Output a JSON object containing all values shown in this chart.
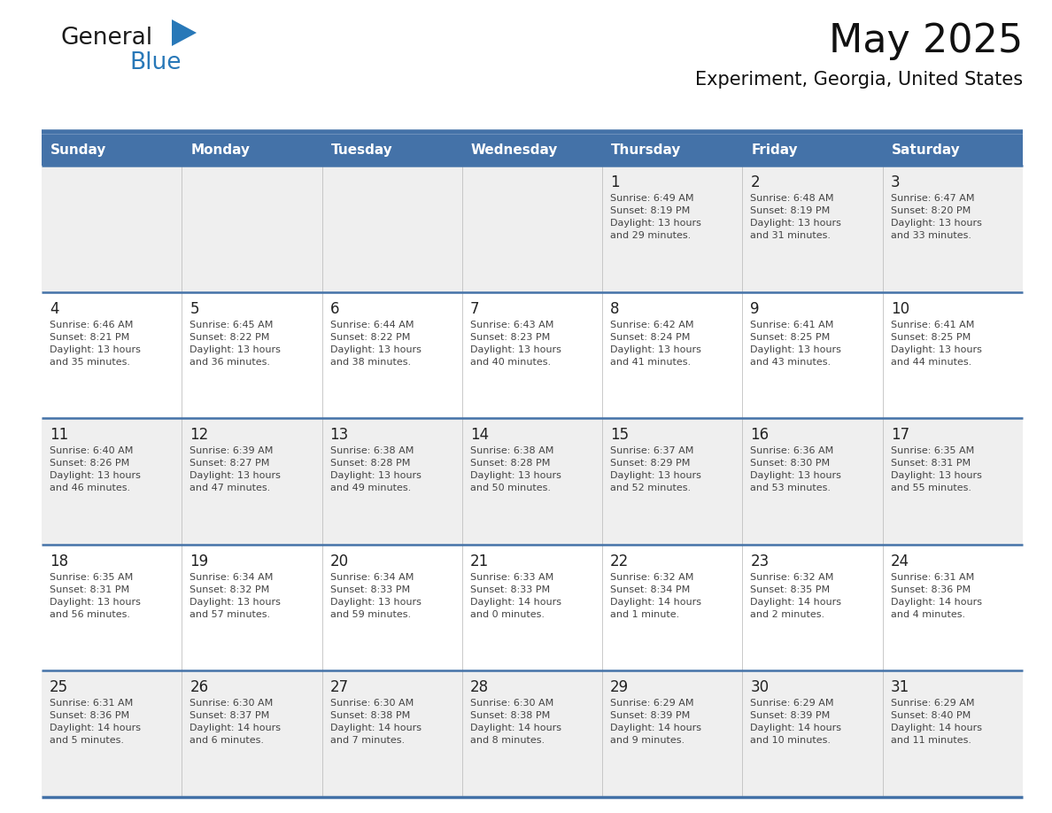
{
  "title": "May 2025",
  "subtitle": "Experiment, Georgia, United States",
  "header_bg_color": "#4472a8",
  "header_text_color": "#ffffff",
  "day_names": [
    "Sunday",
    "Monday",
    "Tuesday",
    "Wednesday",
    "Thursday",
    "Friday",
    "Saturday"
  ],
  "bg_color": "#ffffff",
  "alt_row_bg": "#efefef",
  "cell_text_color": "#444444",
  "date_color": "#222222",
  "border_color": "#4472a8",
  "grid_color": "#c0c0c0",
  "logo_general_color": "#1a1a1a",
  "logo_blue_color": "#2878b8",
  "title_fontsize": 32,
  "subtitle_fontsize": 15,
  "header_fontsize": 11,
  "date_fontsize": 12,
  "info_fontsize": 8,
  "weeks": [
    {
      "days": [
        {
          "date": "",
          "info": ""
        },
        {
          "date": "",
          "info": ""
        },
        {
          "date": "",
          "info": ""
        },
        {
          "date": "",
          "info": ""
        },
        {
          "date": "1",
          "info": "Sunrise: 6:49 AM\nSunset: 8:19 PM\nDaylight: 13 hours\nand 29 minutes."
        },
        {
          "date": "2",
          "info": "Sunrise: 6:48 AM\nSunset: 8:19 PM\nDaylight: 13 hours\nand 31 minutes."
        },
        {
          "date": "3",
          "info": "Sunrise: 6:47 AM\nSunset: 8:20 PM\nDaylight: 13 hours\nand 33 minutes."
        }
      ]
    },
    {
      "days": [
        {
          "date": "4",
          "info": "Sunrise: 6:46 AM\nSunset: 8:21 PM\nDaylight: 13 hours\nand 35 minutes."
        },
        {
          "date": "5",
          "info": "Sunrise: 6:45 AM\nSunset: 8:22 PM\nDaylight: 13 hours\nand 36 minutes."
        },
        {
          "date": "6",
          "info": "Sunrise: 6:44 AM\nSunset: 8:22 PM\nDaylight: 13 hours\nand 38 minutes."
        },
        {
          "date": "7",
          "info": "Sunrise: 6:43 AM\nSunset: 8:23 PM\nDaylight: 13 hours\nand 40 minutes."
        },
        {
          "date": "8",
          "info": "Sunrise: 6:42 AM\nSunset: 8:24 PM\nDaylight: 13 hours\nand 41 minutes."
        },
        {
          "date": "9",
          "info": "Sunrise: 6:41 AM\nSunset: 8:25 PM\nDaylight: 13 hours\nand 43 minutes."
        },
        {
          "date": "10",
          "info": "Sunrise: 6:41 AM\nSunset: 8:25 PM\nDaylight: 13 hours\nand 44 minutes."
        }
      ]
    },
    {
      "days": [
        {
          "date": "11",
          "info": "Sunrise: 6:40 AM\nSunset: 8:26 PM\nDaylight: 13 hours\nand 46 minutes."
        },
        {
          "date": "12",
          "info": "Sunrise: 6:39 AM\nSunset: 8:27 PM\nDaylight: 13 hours\nand 47 minutes."
        },
        {
          "date": "13",
          "info": "Sunrise: 6:38 AM\nSunset: 8:28 PM\nDaylight: 13 hours\nand 49 minutes."
        },
        {
          "date": "14",
          "info": "Sunrise: 6:38 AM\nSunset: 8:28 PM\nDaylight: 13 hours\nand 50 minutes."
        },
        {
          "date": "15",
          "info": "Sunrise: 6:37 AM\nSunset: 8:29 PM\nDaylight: 13 hours\nand 52 minutes."
        },
        {
          "date": "16",
          "info": "Sunrise: 6:36 AM\nSunset: 8:30 PM\nDaylight: 13 hours\nand 53 minutes."
        },
        {
          "date": "17",
          "info": "Sunrise: 6:35 AM\nSunset: 8:31 PM\nDaylight: 13 hours\nand 55 minutes."
        }
      ]
    },
    {
      "days": [
        {
          "date": "18",
          "info": "Sunrise: 6:35 AM\nSunset: 8:31 PM\nDaylight: 13 hours\nand 56 minutes."
        },
        {
          "date": "19",
          "info": "Sunrise: 6:34 AM\nSunset: 8:32 PM\nDaylight: 13 hours\nand 57 minutes."
        },
        {
          "date": "20",
          "info": "Sunrise: 6:34 AM\nSunset: 8:33 PM\nDaylight: 13 hours\nand 59 minutes."
        },
        {
          "date": "21",
          "info": "Sunrise: 6:33 AM\nSunset: 8:33 PM\nDaylight: 14 hours\nand 0 minutes."
        },
        {
          "date": "22",
          "info": "Sunrise: 6:32 AM\nSunset: 8:34 PM\nDaylight: 14 hours\nand 1 minute."
        },
        {
          "date": "23",
          "info": "Sunrise: 6:32 AM\nSunset: 8:35 PM\nDaylight: 14 hours\nand 2 minutes."
        },
        {
          "date": "24",
          "info": "Sunrise: 6:31 AM\nSunset: 8:36 PM\nDaylight: 14 hours\nand 4 minutes."
        }
      ]
    },
    {
      "days": [
        {
          "date": "25",
          "info": "Sunrise: 6:31 AM\nSunset: 8:36 PM\nDaylight: 14 hours\nand 5 minutes."
        },
        {
          "date": "26",
          "info": "Sunrise: 6:30 AM\nSunset: 8:37 PM\nDaylight: 14 hours\nand 6 minutes."
        },
        {
          "date": "27",
          "info": "Sunrise: 6:30 AM\nSunset: 8:38 PM\nDaylight: 14 hours\nand 7 minutes."
        },
        {
          "date": "28",
          "info": "Sunrise: 6:30 AM\nSunset: 8:38 PM\nDaylight: 14 hours\nand 8 minutes."
        },
        {
          "date": "29",
          "info": "Sunrise: 6:29 AM\nSunset: 8:39 PM\nDaylight: 14 hours\nand 9 minutes."
        },
        {
          "date": "30",
          "info": "Sunrise: 6:29 AM\nSunset: 8:39 PM\nDaylight: 14 hours\nand 10 minutes."
        },
        {
          "date": "31",
          "info": "Sunrise: 6:29 AM\nSunset: 8:40 PM\nDaylight: 14 hours\nand 11 minutes."
        }
      ]
    }
  ]
}
